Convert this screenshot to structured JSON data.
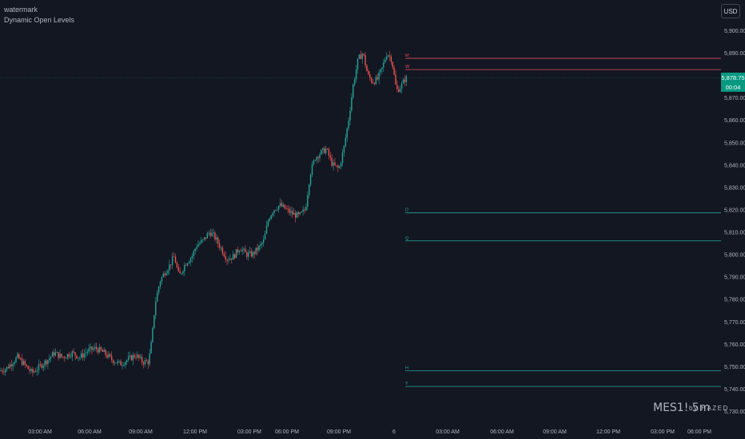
{
  "header": {
    "watermark_label": "watermark",
    "indicator_label": "Dynamic Open Levels"
  },
  "currency_button": "USD",
  "price_tag": {
    "price": "5,878.75",
    "countdown": "00:04"
  },
  "branding": {
    "ticker": "MES1! 5m",
    "by": "by HAZED"
  },
  "colors": {
    "background": "#131722",
    "up": "#26a69a",
    "down": "#ef5350",
    "resistance_line": "#e04c5e",
    "support_line": "#26a69a",
    "price_tag": "#089981",
    "axis_text": "#b2b5be"
  },
  "chart_data": {
    "type": "candlestick",
    "y_axis": {
      "min": 5730,
      "max": 5900,
      "ticks": [
        "5,900.00",
        "5,890.00",
        "5,880.00",
        "5,870.00",
        "5,860.00",
        "5,850.00",
        "5,840.00",
        "5,830.00",
        "5,820.00",
        "5,810.00",
        "5,800.00",
        "5,790.00",
        "5,780.00",
        "5,770.00",
        "5,760.00",
        "5,750.00",
        "5,740.00",
        "5,730.00"
      ]
    },
    "x_axis": {
      "ticks": [
        "03:00 AM",
        "06:00 AM",
        "09:00 AM",
        "12:00 PM",
        "03:00 PM",
        "06:00 PM",
        "09:00 PM",
        "6",
        "03:00 AM",
        "06:00 AM",
        "09:00 AM",
        "12:00 PM",
        "03:00 PM",
        "06:00 PM"
      ]
    },
    "current_price": 5878.75,
    "levels": [
      {
        "label": "M",
        "price": 5887.5,
        "kind": "resistance"
      },
      {
        "label": "W",
        "price": 5882.5,
        "kind": "resistance"
      },
      {
        "label": "D",
        "price": 5818.5,
        "kind": "support"
      },
      {
        "label": "Q",
        "price": 5806,
        "kind": "support"
      },
      {
        "label": "H",
        "price": 5748,
        "kind": "support"
      },
      {
        "label": "Y",
        "price": 5741,
        "kind": "support"
      }
    ],
    "trend": [
      [
        0,
        5748
      ],
      [
        8,
        5749
      ],
      [
        16,
        5752
      ],
      [
        22,
        5754
      ],
      [
        30,
        5751
      ],
      [
        40,
        5747
      ],
      [
        50,
        5750
      ],
      [
        60,
        5753
      ],
      [
        68,
        5756
      ],
      [
        78,
        5754
      ],
      [
        90,
        5756
      ],
      [
        100,
        5754
      ],
      [
        110,
        5757
      ],
      [
        120,
        5758
      ],
      [
        130,
        5756
      ],
      [
        140,
        5753
      ],
      [
        150,
        5751
      ],
      [
        160,
        5753
      ],
      [
        170,
        5755
      ],
      [
        178,
        5752
      ],
      [
        186,
        5752
      ],
      [
        190,
        5762
      ],
      [
        194,
        5778
      ],
      [
        200,
        5788
      ],
      [
        206,
        5792
      ],
      [
        212,
        5795
      ],
      [
        218,
        5799
      ],
      [
        224,
        5790
      ],
      [
        232,
        5796
      ],
      [
        240,
        5799
      ],
      [
        246,
        5804
      ],
      [
        254,
        5806
      ],
      [
        262,
        5810
      ],
      [
        268,
        5808
      ],
      [
        276,
        5803
      ],
      [
        284,
        5798
      ],
      [
        292,
        5799
      ],
      [
        300,
        5803
      ],
      [
        308,
        5800
      ],
      [
        316,
        5800
      ],
      [
        324,
        5803
      ],
      [
        330,
        5806
      ],
      [
        336,
        5816
      ],
      [
        342,
        5820
      ],
      [
        350,
        5822
      ],
      [
        358,
        5820
      ],
      [
        366,
        5818
      ],
      [
        374,
        5817
      ],
      [
        382,
        5820
      ],
      [
        388,
        5836
      ],
      [
        394,
        5843
      ],
      [
        400,
        5845
      ],
      [
        408,
        5847
      ],
      [
        416,
        5840
      ],
      [
        424,
        5838
      ],
      [
        430,
        5847
      ],
      [
        436,
        5860
      ],
      [
        442,
        5876
      ],
      [
        448,
        5887
      ],
      [
        454,
        5890
      ],
      [
        460,
        5880
      ],
      [
        466,
        5877
      ],
      [
        472,
        5878
      ],
      [
        478,
        5883
      ],
      [
        484,
        5890
      ],
      [
        490,
        5887
      ],
      [
        496,
        5873
      ],
      [
        502,
        5875
      ],
      [
        506,
        5878
      ],
      [
        510,
        5878.75
      ]
    ]
  }
}
